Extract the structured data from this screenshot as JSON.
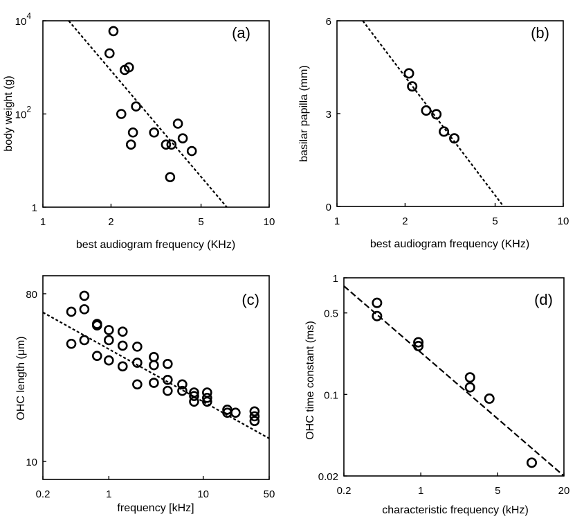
{
  "colors": {
    "ink": "#000000",
    "background": "#ffffff"
  },
  "chart_data": [
    {
      "panel": "(a)",
      "type": "scatter",
      "xscale": "log",
      "yscale": "log",
      "xlim": [
        1,
        10
      ],
      "ylim": [
        1,
        10000
      ],
      "xlabel": "best audiogram frequency (KHz)",
      "ylabel": "body weight (g)",
      "xticks": [
        {
          "v": 1,
          "label": "1"
        },
        {
          "v": 2,
          "label": "2"
        },
        {
          "v": 5,
          "label": "5"
        },
        {
          "v": 10,
          "label": "10"
        }
      ],
      "yticks": [
        {
          "v": 1,
          "label": "1",
          "sup": ""
        },
        {
          "v": 100,
          "label": "10",
          "sup": "2"
        },
        {
          "v": 10000,
          "label": "10",
          "sup": "4"
        }
      ],
      "points": [
        {
          "x": 2.05,
          "y": 6000
        },
        {
          "x": 1.97,
          "y": 2000
        },
        {
          "x": 2.3,
          "y": 880
        },
        {
          "x": 2.4,
          "y": 1000
        },
        {
          "x": 2.58,
          "y": 145
        },
        {
          "x": 2.22,
          "y": 100
        },
        {
          "x": 2.5,
          "y": 40
        },
        {
          "x": 2.45,
          "y": 22
        },
        {
          "x": 3.1,
          "y": 40
        },
        {
          "x": 3.5,
          "y": 22
        },
        {
          "x": 3.7,
          "y": 22
        },
        {
          "x": 3.95,
          "y": 62
        },
        {
          "x": 4.15,
          "y": 30
        },
        {
          "x": 4.55,
          "y": 16
        },
        {
          "x": 3.65,
          "y": 4.4
        }
      ],
      "fit": [
        {
          "x": 1.3,
          "y": 10000
        },
        {
          "x": 6.5,
          "y": 1
        }
      ],
      "legend": "none",
      "grid": false
    },
    {
      "panel": "(b)",
      "type": "scatter",
      "xscale": "log",
      "yscale": "linear",
      "xlim": [
        1,
        10
      ],
      "ylim": [
        0,
        6
      ],
      "xlabel": "best audiogram frequency (KHz)",
      "ylabel": "basilar papilla (mm)",
      "xticks": [
        {
          "v": 1,
          "label": "1"
        },
        {
          "v": 2,
          "label": "2"
        },
        {
          "v": 5,
          "label": "5"
        },
        {
          "v": 10,
          "label": "10"
        }
      ],
      "yticks": [
        {
          "v": 0,
          "label": "0"
        },
        {
          "v": 3,
          "label": "3"
        },
        {
          "v": 6,
          "label": "6"
        }
      ],
      "points": [
        {
          "x": 2.08,
          "y": 4.3
        },
        {
          "x": 2.15,
          "y": 3.88
        },
        {
          "x": 2.48,
          "y": 3.1
        },
        {
          "x": 2.75,
          "y": 2.98
        },
        {
          "x": 2.97,
          "y": 2.42
        },
        {
          "x": 3.3,
          "y": 2.2
        }
      ],
      "fit": [
        {
          "x": 1.3,
          "y": 6
        },
        {
          "x": 5.45,
          "y": 0
        }
      ],
      "legend": "none",
      "grid": false
    },
    {
      "panel": "(c)",
      "type": "scatter",
      "xscale": "log",
      "yscale": "log",
      "xlim": [
        0.2,
        50
      ],
      "ylim": [
        8,
        100
      ],
      "xlabel": "frequency [kHz]",
      "ylabel": "OHC length (μm)",
      "xticks": [
        {
          "v": 0.2,
          "label": "0.2"
        },
        {
          "v": 1,
          "label": "1"
        },
        {
          "v": 10,
          "label": "10"
        },
        {
          "v": 50,
          "label": "50"
        }
      ],
      "yticks": [
        {
          "v": 10,
          "label": "10",
          "sup": ""
        },
        {
          "v": 80,
          "label": "80",
          "sup": ""
        }
      ],
      "points": [
        {
          "x": 0.4,
          "y": 64
        },
        {
          "x": 0.55,
          "y": 78
        },
        {
          "x": 0.55,
          "y": 66
        },
        {
          "x": 0.4,
          "y": 43
        },
        {
          "x": 0.55,
          "y": 45
        },
        {
          "x": 0.75,
          "y": 55
        },
        {
          "x": 0.75,
          "y": 54
        },
        {
          "x": 1.0,
          "y": 51
        },
        {
          "x": 1.4,
          "y": 50
        },
        {
          "x": 1.0,
          "y": 45
        },
        {
          "x": 1.4,
          "y": 42
        },
        {
          "x": 2.0,
          "y": 41.5
        },
        {
          "x": 0.75,
          "y": 37
        },
        {
          "x": 1.0,
          "y": 35
        },
        {
          "x": 1.4,
          "y": 32.5
        },
        {
          "x": 2.0,
          "y": 34
        },
        {
          "x": 3.0,
          "y": 36.5
        },
        {
          "x": 3.0,
          "y": 33
        },
        {
          "x": 4.2,
          "y": 33.5
        },
        {
          "x": 2.0,
          "y": 26
        },
        {
          "x": 3.0,
          "y": 26.5
        },
        {
          "x": 4.2,
          "y": 27.5
        },
        {
          "x": 4.2,
          "y": 24
        },
        {
          "x": 6.0,
          "y": 26
        },
        {
          "x": 6.0,
          "y": 24
        },
        {
          "x": 8.0,
          "y": 23.5
        },
        {
          "x": 8.0,
          "y": 22.5
        },
        {
          "x": 8.0,
          "y": 21
        },
        {
          "x": 11.0,
          "y": 23.5
        },
        {
          "x": 11.0,
          "y": 22
        },
        {
          "x": 11.0,
          "y": 21
        },
        {
          "x": 18.0,
          "y": 19
        },
        {
          "x": 18.0,
          "y": 18.3
        },
        {
          "x": 22.0,
          "y": 18.3
        },
        {
          "x": 35.0,
          "y": 18.6
        },
        {
          "x": 35.0,
          "y": 17.5
        },
        {
          "x": 35.0,
          "y": 16.5
        }
      ],
      "fit": [
        {
          "x": 0.2,
          "y": 63.5
        },
        {
          "x": 50,
          "y": 13.3
        }
      ],
      "legend": "none",
      "grid": false
    },
    {
      "panel": "(d)",
      "type": "scatter",
      "xscale": "log",
      "yscale": "log",
      "xlim": [
        0.2,
        20
      ],
      "ylim": [
        0.02,
        1
      ],
      "xlabel": "characteristic frequency (kHz)",
      "ylabel": "OHC time constant (ms)",
      "xticks": [
        {
          "v": 0.2,
          "label": "0.2"
        },
        {
          "v": 1,
          "label": "1"
        },
        {
          "v": 5,
          "label": "5"
        },
        {
          "v": 20,
          "label": "20"
        }
      ],
      "yticks": [
        {
          "v": 0.02,
          "label": "0.02",
          "sup": ""
        },
        {
          "v": 0.1,
          "label": "0.1",
          "sup": ""
        },
        {
          "v": 0.5,
          "label": "0.5",
          "sup": ""
        },
        {
          "v": 1,
          "label": "1",
          "sup": ""
        }
      ],
      "points": [
        {
          "x": 0.4,
          "y": 0.61
        },
        {
          "x": 0.4,
          "y": 0.47
        },
        {
          "x": 0.95,
          "y": 0.28
        },
        {
          "x": 0.95,
          "y": 0.26
        },
        {
          "x": 2.8,
          "y": 0.14
        },
        {
          "x": 2.8,
          "y": 0.115
        },
        {
          "x": 4.2,
          "y": 0.092
        },
        {
          "x": 10.2,
          "y": 0.026
        }
      ],
      "fit": [
        {
          "x": 0.2,
          "y": 0.85
        },
        {
          "x": 20,
          "y": 0.02
        }
      ],
      "legend": "none",
      "grid": false
    }
  ]
}
